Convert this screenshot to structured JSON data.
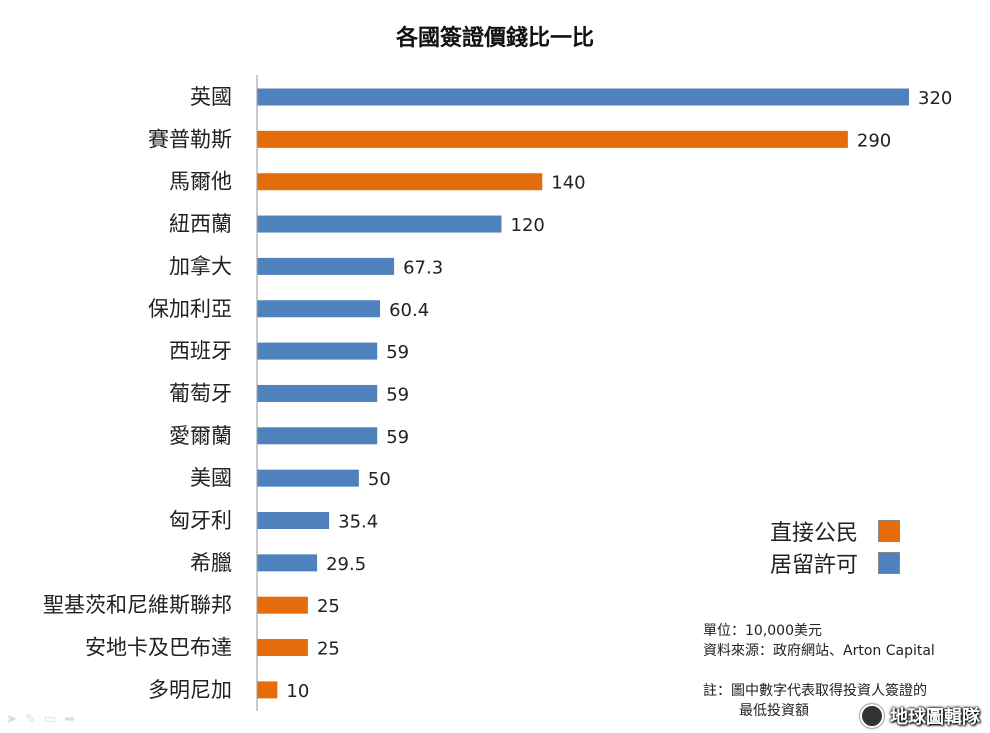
{
  "chart_data": {
    "type": "bar",
    "orientation": "horizontal",
    "title": "各國簽證價錢比一比",
    "categories": [
      "英國",
      "賽普勒斯",
      "馬爾他",
      "紐西蘭",
      "加拿大",
      "保加利亞",
      "西班牙",
      "葡萄牙",
      "愛爾蘭",
      "美國",
      "匈牙利",
      "希臘",
      "聖基茨和尼維斯聯邦",
      "安地卡及巴布達",
      "多明尼加"
    ],
    "values": [
      320,
      290,
      140,
      120,
      67.3,
      60.4,
      59,
      59,
      59,
      50,
      35.4,
      29.5,
      25,
      25,
      10
    ],
    "value_labels": [
      "320",
      "290",
      "140",
      "120",
      "67.3",
      "60.4",
      "59",
      "59",
      "59",
      "50",
      "35.4",
      "29.5",
      "25",
      "25",
      "10"
    ],
    "types": [
      "居留許可",
      "直接公民",
      "直接公民",
      "居留許可",
      "居留許可",
      "居留許可",
      "居留許可",
      "居留許可",
      "居留許可",
      "居留許可",
      "居留許可",
      "居留許可",
      "直接公民",
      "直接公民",
      "直接公民"
    ],
    "xlim": [
      0,
      320
    ],
    "grid": false,
    "legend": {
      "placement": "bottom-right",
      "entries": [
        {
          "name": "直接公民",
          "color": "#E46C0A"
        },
        {
          "name": "居留許可",
          "color": "#4F81BD"
        }
      ]
    }
  },
  "notes": {
    "unit": "單位：10,000美元",
    "source": "資料來源：政府網站、Arton Capital",
    "footnote_line1": "註：圖中數字代表取得投資人簽證的",
    "footnote_line2": "最低投資額"
  },
  "watermark": "地球圖輯隊",
  "colors": {
    "直接公民": "#E46C0A",
    "居留許可": "#4F81BD",
    "axis": "#A6A6A6"
  }
}
